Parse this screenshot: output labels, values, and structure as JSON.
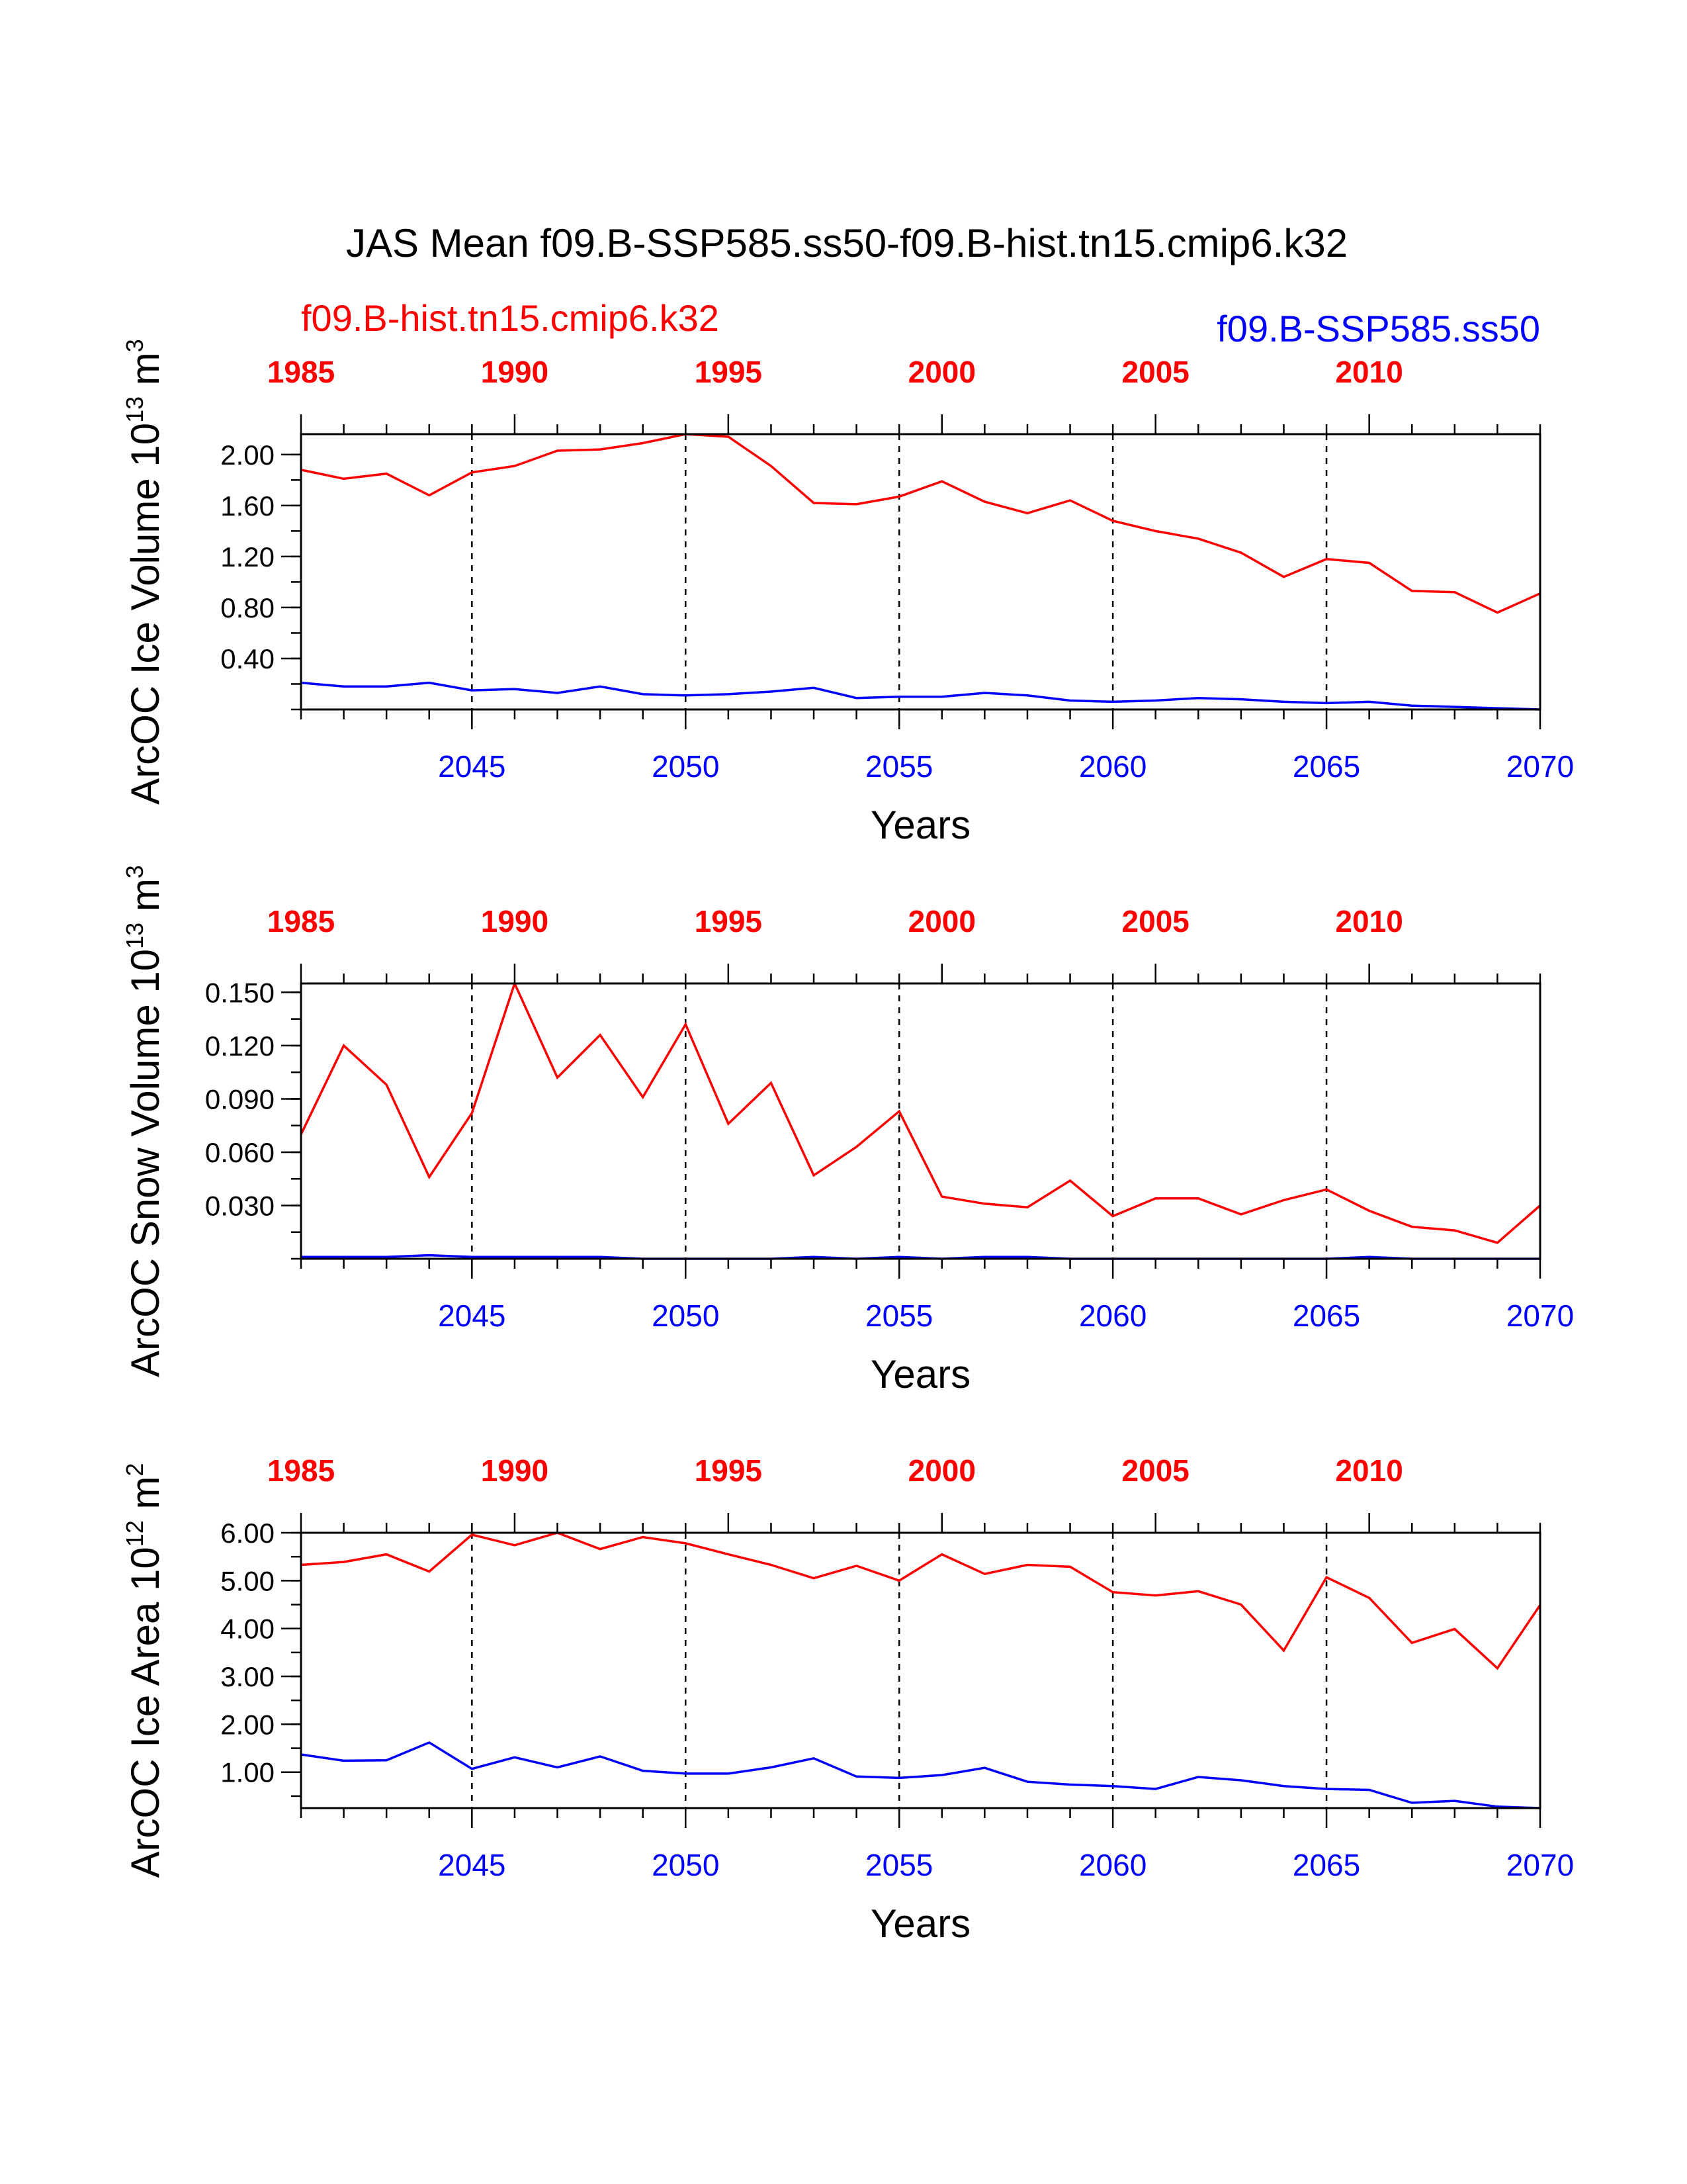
{
  "title": "JAS Mean f09.B-SSP585.ss50-f09.B-hist.tn15.cmip6.k32",
  "legend": {
    "left": {
      "text": "f09.B-hist.tn15.cmip6.k32",
      "color": "#ff0000"
    },
    "right": {
      "text": "f09.B-SSP585.ss50",
      "color": "#0000ff"
    }
  },
  "colors": {
    "hist": "#ff0000",
    "ssp": "#0000ff",
    "axis": "#000000"
  },
  "chart_data": [
    {
      "type": "line",
      "ylabel": "ArcOC Ice Volume 10",
      "ylabel_exp": "13",
      "ylabel_unit": " m",
      "ylabel_unit_exp": "3",
      "xlabel": "Years",
      "xlim": [
        2041,
        2070
      ],
      "ylim": [
        0.0,
        2.16
      ],
      "yticks": [
        0.4,
        0.8,
        1.2,
        1.6,
        2.0
      ],
      "yticklabels": [
        "0.40",
        "0.80",
        "1.20",
        "1.60",
        "2.00"
      ],
      "yminor": 0.2,
      "top_axis": {
        "range": [
          1985,
          2014
        ],
        "ticks": [
          1985,
          1990,
          1995,
          2000,
          2005,
          2010
        ],
        "labels": [
          "1985",
          "1990",
          "1995",
          "2000",
          "2005",
          "2010"
        ]
      },
      "bottom_axis": {
        "ticks": [
          2045,
          2050,
          2055,
          2060,
          2065,
          2070
        ],
        "labels": [
          "2045",
          "2050",
          "2055",
          "2060",
          "2065",
          "2070"
        ]
      },
      "x": [
        2041,
        2042,
        2043,
        2044,
        2045,
        2046,
        2047,
        2048,
        2049,
        2050,
        2051,
        2052,
        2053,
        2054,
        2055,
        2056,
        2057,
        2058,
        2059,
        2060,
        2061,
        2062,
        2063,
        2064,
        2065,
        2066,
        2067,
        2068,
        2069,
        2070
      ],
      "series": [
        {
          "name": "f09.B-hist.tn15.cmip6.k32",
          "color": "#ff0000",
          "values": [
            1.88,
            1.81,
            1.85,
            1.68,
            1.86,
            1.91,
            2.03,
            2.04,
            2.09,
            2.16,
            2.14,
            1.91,
            1.62,
            1.61,
            1.67,
            1.79,
            1.63,
            1.54,
            1.64,
            1.48,
            1.4,
            1.34,
            1.23,
            1.04,
            1.18,
            1.15,
            0.93,
            0.92,
            0.76,
            0.91
          ]
        },
        {
          "name": "f09.B-SSP585.ss50",
          "color": "#0000ff",
          "values": [
            0.21,
            0.18,
            0.18,
            0.21,
            0.15,
            0.16,
            0.13,
            0.18,
            0.12,
            0.11,
            0.12,
            0.14,
            0.17,
            0.09,
            0.1,
            0.1,
            0.13,
            0.11,
            0.07,
            0.06,
            0.07,
            0.09,
            0.08,
            0.06,
            0.05,
            0.06,
            0.03,
            0.02,
            0.01,
            0.0
          ]
        }
      ]
    },
    {
      "type": "line",
      "ylabel": "ArcOC Snow Volume 10",
      "ylabel_exp": "13",
      "ylabel_unit": " m",
      "ylabel_unit_exp": "3",
      "xlabel": "Years",
      "xlim": [
        2041,
        2070
      ],
      "ylim": [
        0.0,
        0.155
      ],
      "yticks": [
        0.03,
        0.06,
        0.09,
        0.12,
        0.15
      ],
      "yticklabels": [
        "0.030",
        "0.060",
        "0.090",
        "0.120",
        "0.150"
      ],
      "yminor": 0.015,
      "top_axis": {
        "range": [
          1985,
          2014
        ],
        "ticks": [
          1985,
          1990,
          1995,
          2000,
          2005,
          2010
        ],
        "labels": [
          "1985",
          "1990",
          "1995",
          "2000",
          "2005",
          "2010"
        ]
      },
      "bottom_axis": {
        "ticks": [
          2045,
          2050,
          2055,
          2060,
          2065,
          2070
        ],
        "labels": [
          "2045",
          "2050",
          "2055",
          "2060",
          "2065",
          "2070"
        ]
      },
      "x": [
        2041,
        2042,
        2043,
        2044,
        2045,
        2046,
        2047,
        2048,
        2049,
        2050,
        2051,
        2052,
        2053,
        2054,
        2055,
        2056,
        2057,
        2058,
        2059,
        2060,
        2061,
        2062,
        2063,
        2064,
        2065,
        2066,
        2067,
        2068,
        2069,
        2070
      ],
      "series": [
        {
          "name": "f09.B-hist.tn15.cmip6.k32",
          "color": "#ff0000",
          "values": [
            0.07,
            0.12,
            0.098,
            0.046,
            0.082,
            0.155,
            0.102,
            0.126,
            0.091,
            0.132,
            0.076,
            0.099,
            0.047,
            0.063,
            0.083,
            0.035,
            0.031,
            0.029,
            0.044,
            0.024,
            0.034,
            0.034,
            0.025,
            0.033,
            0.039,
            0.027,
            0.018,
            0.016,
            0.009,
            0.03
          ]
        },
        {
          "name": "f09.B-SSP585.ss50",
          "color": "#0000ff",
          "values": [
            0.001,
            0.001,
            0.001,
            0.002,
            0.001,
            0.001,
            0.001,
            0.001,
            0.0,
            0.0,
            0.0,
            0.0,
            0.001,
            0.0,
            0.001,
            0.0,
            0.001,
            0.001,
            0.0,
            0.0,
            0.0,
            0.0,
            0.0,
            0.0,
            0.0,
            0.001,
            0.0,
            0.0,
            0.0,
            0.0
          ]
        }
      ]
    },
    {
      "type": "line",
      "ylabel": "ArcOC Ice Area 10",
      "ylabel_exp": "12",
      "ylabel_unit": " m",
      "ylabel_unit_exp": "2",
      "xlabel": "Years",
      "xlim": [
        2041,
        2070
      ],
      "ylim": [
        0.25,
        6.0
      ],
      "yticks": [
        1.0,
        2.0,
        3.0,
        4.0,
        5.0,
        6.0
      ],
      "yticklabels": [
        "1.00",
        "2.00",
        "3.00",
        "4.00",
        "5.00",
        "6.00"
      ],
      "yminor": 0.5,
      "top_axis": {
        "range": [
          1985,
          2014
        ],
        "ticks": [
          1985,
          1990,
          1995,
          2000,
          2005,
          2010
        ],
        "labels": [
          "1985",
          "1990",
          "1995",
          "2000",
          "2005",
          "2010"
        ]
      },
      "bottom_axis": {
        "ticks": [
          2045,
          2050,
          2055,
          2060,
          2065,
          2070
        ],
        "labels": [
          "2045",
          "2050",
          "2055",
          "2060",
          "2065",
          "2070"
        ]
      },
      "x": [
        2041,
        2042,
        2043,
        2044,
        2045,
        2046,
        2047,
        2048,
        2049,
        2050,
        2051,
        2052,
        2053,
        2054,
        2055,
        2056,
        2057,
        2058,
        2059,
        2060,
        2061,
        2062,
        2063,
        2064,
        2065,
        2066,
        2067,
        2068,
        2069,
        2070
      ],
      "series": [
        {
          "name": "f09.B-hist.tn15.cmip6.k32",
          "color": "#ff0000",
          "values": [
            5.33,
            5.39,
            5.55,
            5.19,
            5.96,
            5.74,
            6.0,
            5.66,
            5.91,
            5.78,
            5.55,
            5.33,
            5.05,
            5.31,
            5.0,
            5.55,
            5.14,
            5.33,
            5.29,
            4.76,
            4.69,
            4.78,
            4.5,
            3.54,
            5.07,
            4.64,
            3.7,
            3.99,
            3.17,
            4.49
          ]
        },
        {
          "name": "f09.B-SSP585.ss50",
          "color": "#0000ff",
          "values": [
            1.37,
            1.24,
            1.25,
            1.62,
            1.07,
            1.31,
            1.1,
            1.33,
            1.03,
            0.97,
            0.97,
            1.1,
            1.29,
            0.91,
            0.88,
            0.94,
            1.09,
            0.8,
            0.74,
            0.71,
            0.65,
            0.9,
            0.83,
            0.71,
            0.65,
            0.63,
            0.36,
            0.4,
            0.28,
            0.25
          ]
        }
      ]
    }
  ]
}
